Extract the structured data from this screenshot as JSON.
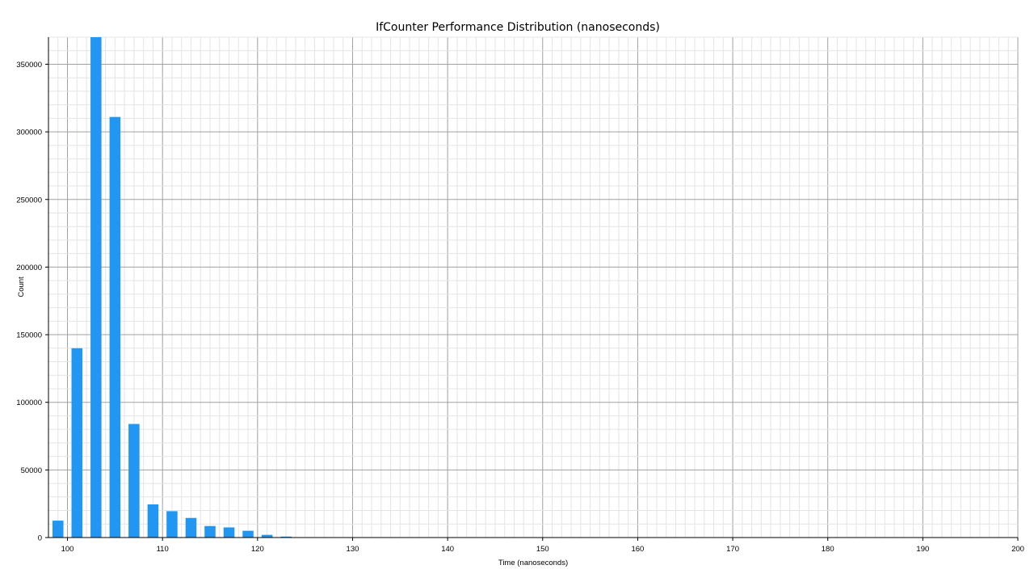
{
  "chart_data": {
    "type": "bar",
    "title": "IfCounter  Performance Distribution (nanoseconds)",
    "xlabel": "Time (nanoseconds)",
    "ylabel": "Count",
    "xlim": [
      98,
      200
    ],
    "ylim": [
      0,
      370000
    ],
    "x_ticks": [
      "100",
      "110",
      "120",
      "130",
      "140",
      "150",
      "160",
      "170",
      "180",
      "190",
      "200"
    ],
    "y_ticks": [
      "0",
      "50000",
      "100000",
      "150000",
      "200000",
      "250000",
      "300000",
      "350000"
    ],
    "x_tick_values": [
      100,
      110,
      120,
      130,
      140,
      150,
      160,
      170,
      180,
      190,
      200
    ],
    "y_tick_values": [
      0,
      50000,
      100000,
      150000,
      200000,
      250000,
      300000,
      350000
    ],
    "grid": true,
    "bar_color": "#2196F3",
    "x": [
      99,
      101,
      103,
      105,
      107,
      109,
      111,
      113,
      115,
      117,
      119,
      121,
      123
    ],
    "values": [
      12500,
      140000,
      370000,
      311000,
      84000,
      24500,
      19500,
      14500,
      8500,
      7500,
      5000,
      2000,
      700
    ]
  }
}
